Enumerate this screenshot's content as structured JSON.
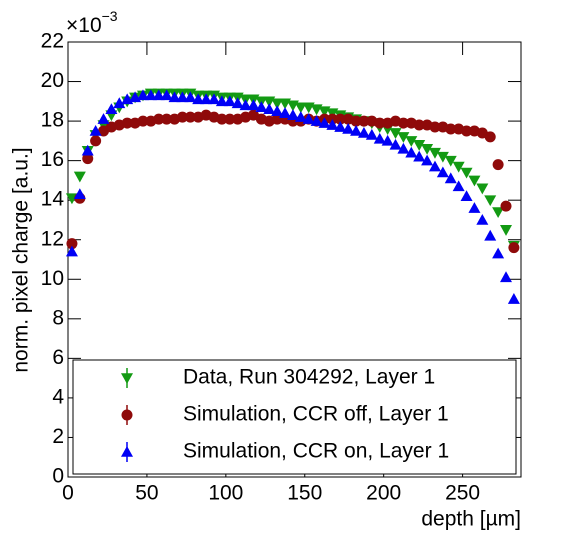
{
  "chart_data": {
    "type": "scatter",
    "x_label": "depth [µm]",
    "y_label": "norm. pixel charge [a.u.]",
    "y_multiplier_base": "×10",
    "y_multiplier_exp": "−3",
    "xlim": [
      0,
      287
    ],
    "ylim": [
      0,
      22
    ],
    "xticks": [
      0,
      50,
      100,
      150,
      200,
      250
    ],
    "yticks": [
      0,
      2,
      4,
      6,
      8,
      10,
      12,
      14,
      16,
      18,
      20,
      22
    ],
    "legend": "bottom",
    "x": [
      2.5,
      7.5,
      12.5,
      17.5,
      22.5,
      27.5,
      32.5,
      37.5,
      42.5,
      47.5,
      52.5,
      57.5,
      62.5,
      67.5,
      72.5,
      77.5,
      82.5,
      87.5,
      92.5,
      97.5,
      102.5,
      107.5,
      112.5,
      117.5,
      122.5,
      127.5,
      132.5,
      137.5,
      142.5,
      147.5,
      152.5,
      157.5,
      162.5,
      167.5,
      172.5,
      177.5,
      182.5,
      187.5,
      192.5,
      197.5,
      202.5,
      207.5,
      212.5,
      217.5,
      222.5,
      227.5,
      232.5,
      237.5,
      242.5,
      247.5,
      252.5,
      257.5,
      262.5,
      267.5,
      272.5,
      277.5,
      282.5
    ],
    "series": [
      {
        "name": "Data, Run 304292, Layer 1",
        "color": "#139a13",
        "marker": "triangle-down",
        "values": [
          14.1,
          15.2,
          16.5,
          17.3,
          17.8,
          18.3,
          18.7,
          19.0,
          19.2,
          19.3,
          19.4,
          19.4,
          19.4,
          19.4,
          19.4,
          19.4,
          19.3,
          19.3,
          19.3,
          19.2,
          19.2,
          19.2,
          19.1,
          19.1,
          19.0,
          19.0,
          18.9,
          18.9,
          18.8,
          18.7,
          18.7,
          18.6,
          18.5,
          18.4,
          18.3,
          18.2,
          18.1,
          18.0,
          17.9,
          17.7,
          17.6,
          17.4,
          17.2,
          17.0,
          16.8,
          16.6,
          16.4,
          16.2,
          16.0,
          15.7,
          15.4,
          15.0,
          14.6,
          14.0,
          13.4,
          12.5,
          11.7
        ]
      },
      {
        "name": "Simulation, CCR off, Layer 1",
        "color": "#8f0a0a",
        "marker": "circle",
        "values": [
          11.8,
          14.1,
          16.1,
          17.0,
          17.5,
          17.7,
          17.8,
          17.9,
          17.9,
          18.0,
          18.0,
          18.1,
          18.1,
          18.1,
          18.2,
          18.2,
          18.2,
          18.3,
          18.2,
          18.1,
          18.1,
          18.1,
          18.2,
          18.3,
          18.1,
          18.0,
          18.1,
          18.1,
          18.0,
          18.0,
          18.1,
          18.0,
          18.1,
          18.1,
          18.1,
          18.1,
          18.0,
          18.0,
          18.0,
          17.9,
          17.9,
          18.0,
          17.9,
          17.9,
          17.8,
          17.8,
          17.7,
          17.7,
          17.6,
          17.6,
          17.5,
          17.5,
          17.4,
          17.2,
          15.8,
          13.7,
          11.6
        ]
      },
      {
        "name": "Simulation, CCR on, Layer 1",
        "color": "#0000f5",
        "marker": "triangle-up",
        "values": [
          11.4,
          14.3,
          16.5,
          17.5,
          18.1,
          18.6,
          18.9,
          19.1,
          19.2,
          19.3,
          19.3,
          19.3,
          19.3,
          19.2,
          19.2,
          19.2,
          19.1,
          19.1,
          19.1,
          19.0,
          19.0,
          18.9,
          18.8,
          18.8,
          18.7,
          18.6,
          18.5,
          18.4,
          18.3,
          18.2,
          18.1,
          18.0,
          17.9,
          17.8,
          17.7,
          17.6,
          17.5,
          17.4,
          17.3,
          17.1,
          17.0,
          16.8,
          16.6,
          16.4,
          16.2,
          16.0,
          15.7,
          15.4,
          15.1,
          14.7,
          14.2,
          13.6,
          13.0,
          12.2,
          11.3,
          10.1,
          9.0
        ]
      }
    ]
  }
}
